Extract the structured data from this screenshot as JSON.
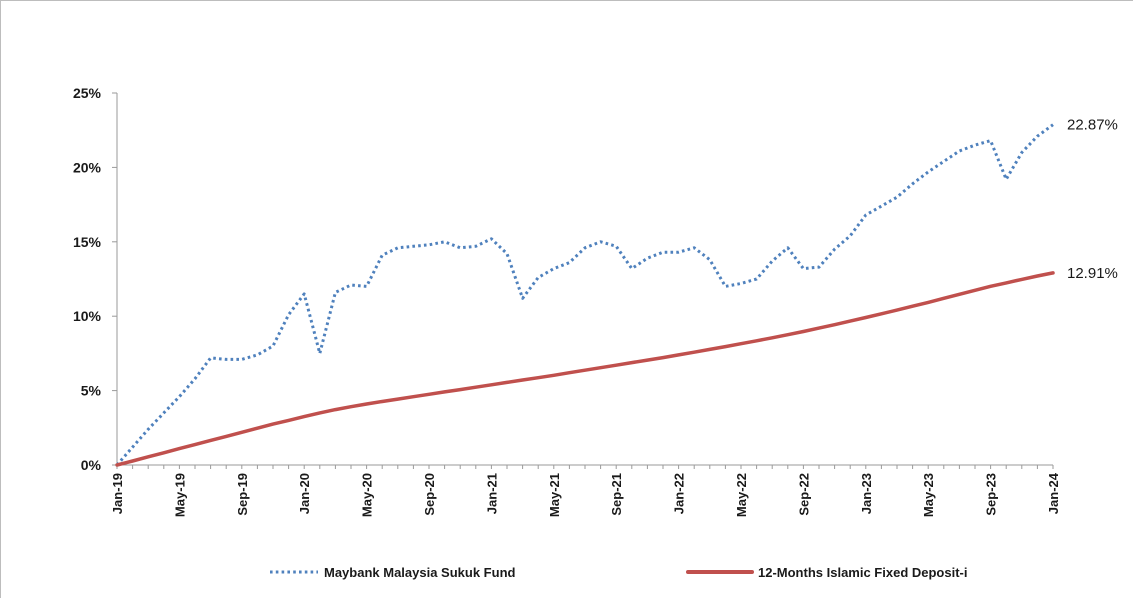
{
  "chart_data": {
    "type": "line",
    "title": "",
    "xlabel": "",
    "ylabel": "",
    "ylim": [
      0,
      25
    ],
    "y_ticks": [
      "0%",
      "5%",
      "10%",
      "15%",
      "20%",
      "25%"
    ],
    "x_ticks": [
      "Jan-19",
      "May-19",
      "Sep-19",
      "Jan-20",
      "May-20",
      "Sep-20",
      "Jan-21",
      "May-21",
      "Sep-21",
      "Jan-22",
      "May-22",
      "Sep-22",
      "Jan-23",
      "May-23",
      "Sep-23",
      "Jan-24"
    ],
    "grid": false,
    "legend_position": "bottom",
    "series": [
      {
        "name": "Maybank Malaysia Sukuk Fund",
        "style": "dotted",
        "color": "#4f81bd",
        "end_label": "22.87%",
        "x": [
          "Jan-19",
          "Feb-19",
          "Mar-19",
          "Apr-19",
          "May-19",
          "Jun-19",
          "Jul-19",
          "Aug-19",
          "Sep-19",
          "Oct-19",
          "Nov-19",
          "Dec-19",
          "Jan-20",
          "Feb-20",
          "Mar-20",
          "Apr-20",
          "May-20",
          "Jun-20",
          "Jul-20",
          "Aug-20",
          "Sep-20",
          "Oct-20",
          "Nov-20",
          "Dec-20",
          "Jan-21",
          "Feb-21",
          "Mar-21",
          "Apr-21",
          "May-21",
          "Jun-21",
          "Jul-21",
          "Aug-21",
          "Sep-21",
          "Oct-21",
          "Nov-21",
          "Dec-21",
          "Jan-22",
          "Feb-22",
          "Mar-22",
          "Apr-22",
          "May-22",
          "Jun-22",
          "Jul-22",
          "Aug-22",
          "Sep-22",
          "Oct-22",
          "Nov-22",
          "Dec-22",
          "Jan-23",
          "Feb-23",
          "Mar-23",
          "Apr-23",
          "May-23",
          "Jun-23",
          "Jul-23",
          "Aug-23",
          "Sep-23",
          "Oct-23",
          "Nov-23",
          "Dec-23",
          "Jan-24"
        ],
        "values": [
          0.0,
          1.2,
          2.4,
          3.5,
          4.6,
          5.8,
          7.2,
          7.1,
          7.1,
          7.4,
          8.0,
          10.1,
          11.5,
          7.5,
          11.6,
          12.1,
          12.0,
          14.1,
          14.6,
          14.7,
          14.8,
          15.0,
          14.6,
          14.7,
          15.2,
          14.2,
          11.2,
          12.6,
          13.2,
          13.6,
          14.6,
          15.0,
          14.7,
          13.2,
          13.9,
          14.3,
          14.3,
          14.6,
          13.8,
          12.0,
          12.2,
          12.5,
          13.7,
          14.6,
          13.2,
          13.3,
          14.5,
          15.4,
          16.8,
          17.4,
          18.0,
          18.9,
          19.7,
          20.4,
          21.1,
          21.5,
          21.8,
          19.2,
          21.0,
          22.1,
          22.87
        ]
      },
      {
        "name": "12-Months Islamic Fixed Deposit-i",
        "style": "solid",
        "color": "#c0504d",
        "end_label": "12.91%",
        "x": [
          "Jan-19",
          "Feb-19",
          "Mar-19",
          "Apr-19",
          "May-19",
          "Jun-19",
          "Jul-19",
          "Aug-19",
          "Sep-19",
          "Oct-19",
          "Nov-19",
          "Dec-19",
          "Jan-20",
          "Feb-20",
          "Mar-20",
          "Apr-20",
          "May-20",
          "Jun-20",
          "Jul-20",
          "Aug-20",
          "Sep-20",
          "Oct-20",
          "Nov-20",
          "Dec-20",
          "Jan-21",
          "Feb-21",
          "Mar-21",
          "Apr-21",
          "May-21",
          "Jun-21",
          "Jul-21",
          "Aug-21",
          "Sep-21",
          "Oct-21",
          "Nov-21",
          "Dec-21",
          "Jan-22",
          "Feb-22",
          "Mar-22",
          "Apr-22",
          "May-22",
          "Jun-22",
          "Jul-22",
          "Aug-22",
          "Sep-22",
          "Oct-22",
          "Nov-22",
          "Dec-22",
          "Jan-23",
          "Feb-23",
          "Mar-23",
          "Apr-23",
          "May-23",
          "Jun-23",
          "Jul-23",
          "Aug-23",
          "Sep-23",
          "Oct-23",
          "Nov-23",
          "Dec-23",
          "Jan-24"
        ],
        "values": [
          0.0,
          0.27,
          0.55,
          0.82,
          1.1,
          1.37,
          1.65,
          1.92,
          2.2,
          2.47,
          2.75,
          3.0,
          3.25,
          3.5,
          3.72,
          3.92,
          4.1,
          4.27,
          4.43,
          4.59,
          4.75,
          4.91,
          5.07,
          5.23,
          5.39,
          5.55,
          5.71,
          5.87,
          6.03,
          6.2,
          6.37,
          6.54,
          6.71,
          6.88,
          7.05,
          7.22,
          7.4,
          7.58,
          7.77,
          7.96,
          8.15,
          8.35,
          8.55,
          8.76,
          8.97,
          9.2,
          9.43,
          9.67,
          9.91,
          10.16,
          10.41,
          10.67,
          10.93,
          11.2,
          11.47,
          11.74,
          12.01,
          12.24,
          12.47,
          12.7,
          12.91
        ]
      }
    ]
  }
}
